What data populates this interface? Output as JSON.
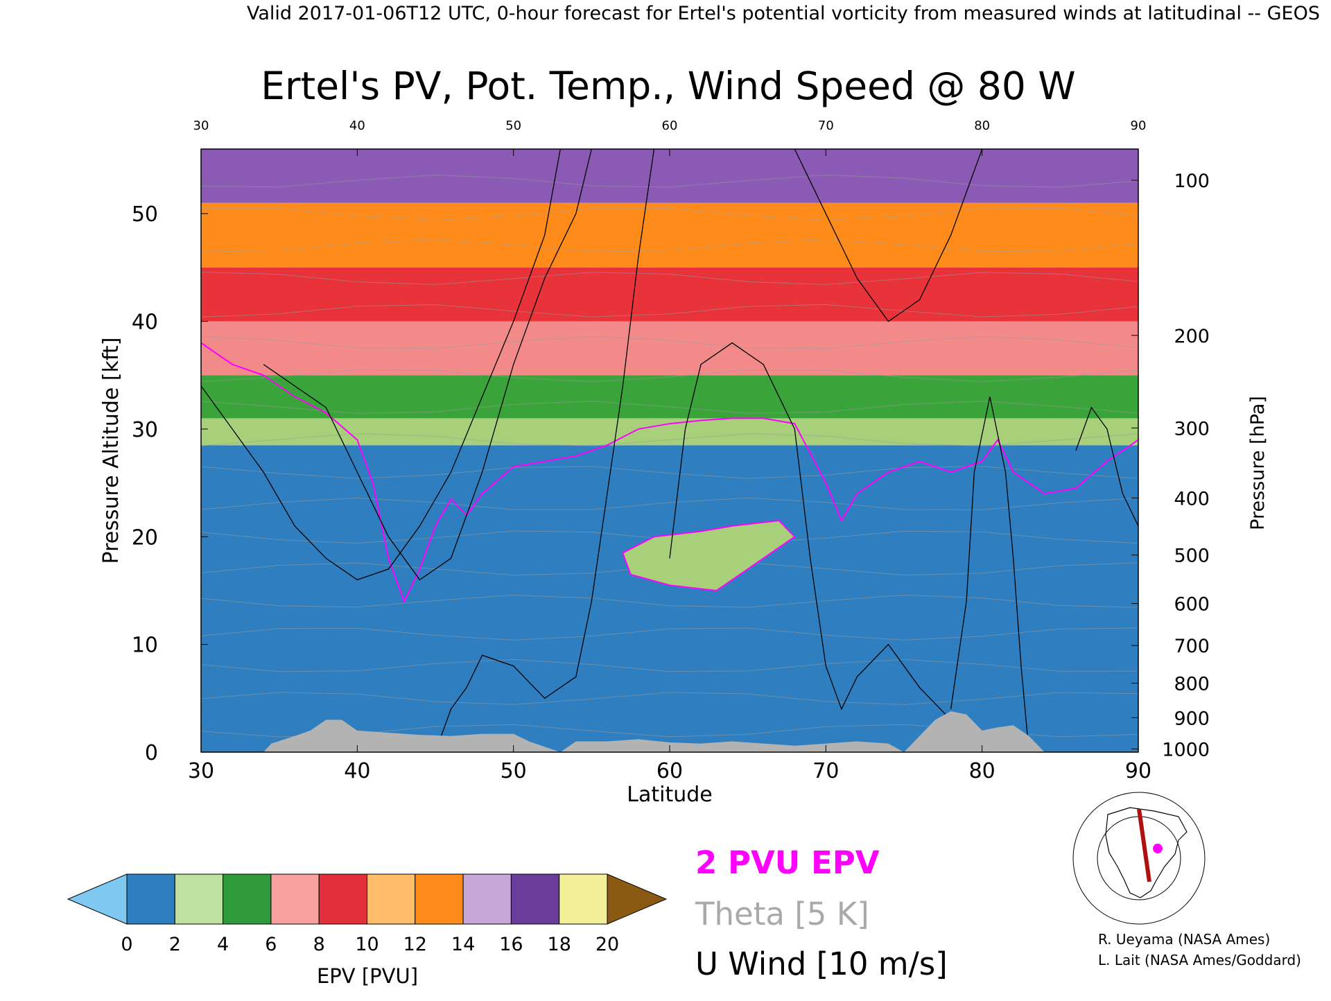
{
  "header_line": "Valid 2017-01-06T12 UTC, 0-hour forecast for Ertel's potential vorticity from measured winds at latitudinal -- GEOS",
  "chart_data": {
    "type": "heatmap",
    "title": "Ertel's PV, Pot. Temp., Wind Speed @ 80 W",
    "xlabel": "Latitude",
    "ylabel_left": "Pressure Altitude [kft]",
    "ylabel_right": "Pressure [hPa]",
    "xlim": [
      30,
      90
    ],
    "ylim_kft": [
      0,
      56
    ],
    "x_ticks": [
      30,
      40,
      50,
      60,
      70,
      80,
      90
    ],
    "y_ticks_kft": [
      0,
      10,
      20,
      30,
      40,
      50
    ],
    "pressure_ticks": [
      {
        "hpa": 100,
        "kft": 53.1
      },
      {
        "hpa": 200,
        "kft": 38.7
      },
      {
        "hpa": 300,
        "kft": 30.1
      },
      {
        "hpa": 400,
        "kft": 23.6
      },
      {
        "hpa": 500,
        "kft": 18.3
      },
      {
        "hpa": 600,
        "kft": 13.8
      },
      {
        "hpa": 700,
        "kft": 9.9
      },
      {
        "hpa": 800,
        "kft": 6.4
      },
      {
        "hpa": 900,
        "kft": 3.2
      },
      {
        "hpa": 1000,
        "kft": 0.3
      }
    ],
    "grid": false,
    "tropopause_2pvu_kft": [
      [
        30,
        38
      ],
      [
        32,
        36
      ],
      [
        34,
        35
      ],
      [
        36,
        33
      ],
      [
        38,
        31.5
      ],
      [
        40,
        29
      ],
      [
        41,
        25
      ],
      [
        42,
        18
      ],
      [
        43,
        14
      ],
      [
        44,
        17
      ],
      [
        45,
        21
      ],
      [
        46,
        23.5
      ],
      [
        47,
        22
      ],
      [
        48,
        24
      ],
      [
        50,
        26.5
      ],
      [
        52,
        27
      ],
      [
        54,
        27.5
      ],
      [
        56,
        28.5
      ],
      [
        58,
        30
      ],
      [
        60,
        30.5
      ],
      [
        62,
        30.8
      ],
      [
        64,
        31
      ],
      [
        66,
        31
      ],
      [
        68,
        30.5
      ],
      [
        70,
        25
      ],
      [
        71,
        21.5
      ],
      [
        72,
        24
      ],
      [
        74,
        26
      ],
      [
        76,
        27
      ],
      [
        78,
        26
      ],
      [
        80,
        27
      ],
      [
        81,
        29
      ],
      [
        82,
        26
      ],
      [
        84,
        24
      ],
      [
        86,
        24.5
      ],
      [
        88,
        27
      ],
      [
        90,
        29
      ]
    ],
    "pv_blob_kft": [
      [
        57,
        18.5
      ],
      [
        59,
        20
      ],
      [
        62,
        20.5
      ],
      [
        64,
        21
      ],
      [
        67,
        21.5
      ],
      [
        68,
        20
      ],
      [
        65,
        17
      ],
      [
        63,
        15
      ],
      [
        60,
        15.5
      ],
      [
        57.5,
        16.5
      ]
    ],
    "terrain_kft": [
      [
        30,
        0
      ],
      [
        34,
        0
      ],
      [
        34.5,
        0.8
      ],
      [
        36,
        1.5
      ],
      [
        37,
        2
      ],
      [
        38,
        3
      ],
      [
        39,
        3
      ],
      [
        40,
        2
      ],
      [
        42,
        1.8
      ],
      [
        44,
        1.6
      ],
      [
        46,
        1.5
      ],
      [
        48,
        1.7
      ],
      [
        50,
        1.7
      ],
      [
        51,
        1
      ],
      [
        52,
        0.5
      ],
      [
        53,
        0
      ],
      [
        54,
        1
      ],
      [
        56,
        1
      ],
      [
        58,
        1.2
      ],
      [
        60,
        0.9
      ],
      [
        62,
        0.8
      ],
      [
        64,
        1
      ],
      [
        66,
        0.8
      ],
      [
        68,
        0.6
      ],
      [
        70,
        0.8
      ],
      [
        72,
        1
      ],
      [
        74,
        0.8
      ],
      [
        75,
        0
      ],
      [
        76,
        1.5
      ],
      [
        77,
        3
      ],
      [
        78,
        3.8
      ],
      [
        79,
        3.5
      ],
      [
        80,
        2
      ],
      [
        81,
        2.3
      ],
      [
        82,
        2.5
      ],
      [
        83,
        1.5
      ],
      [
        84,
        0
      ],
      [
        90,
        0
      ]
    ],
    "epv_bands": [
      {
        "top_kft": 28.5,
        "color": "#2f7fc0"
      },
      {
        "top_kft": 31,
        "color": "#a8d07a"
      },
      {
        "top_kft": 35,
        "color": "#3aa43a"
      },
      {
        "top_kft": 40,
        "color": "#f28a8a"
      },
      {
        "top_kft": 45,
        "color": "#e8333b"
      },
      {
        "top_kft": 51,
        "color": "#ff8c1a"
      },
      {
        "top_kft": 56,
        "color": "#8a5ab4"
      }
    ],
    "wind_contours_kft": [
      [
        [
          30,
          34
        ],
        [
          32,
          30
        ],
        [
          34,
          26
        ],
        [
          36,
          21
        ],
        [
          38,
          18
        ],
        [
          40,
          16
        ],
        [
          42,
          17
        ],
        [
          44,
          21
        ],
        [
          46,
          26
        ],
        [
          48,
          33
        ],
        [
          50,
          40
        ],
        [
          52,
          48
        ],
        [
          53,
          56
        ]
      ],
      [
        [
          34,
          36
        ],
        [
          38,
          32
        ],
        [
          40,
          26
        ],
        [
          42,
          20
        ],
        [
          44,
          16
        ],
        [
          46,
          18
        ],
        [
          48,
          26
        ],
        [
          50,
          36
        ],
        [
          52,
          44
        ],
        [
          54,
          50
        ],
        [
          55,
          56
        ]
      ],
      [
        [
          45,
          0
        ],
        [
          46,
          4
        ],
        [
          47,
          6
        ],
        [
          48,
          9
        ],
        [
          50,
          8
        ],
        [
          52,
          5
        ],
        [
          54,
          7
        ],
        [
          55,
          14
        ],
        [
          56,
          24
        ],
        [
          57,
          34
        ],
        [
          58,
          46
        ],
        [
          59,
          56
        ]
      ],
      [
        [
          60,
          18
        ],
        [
          61,
          30
        ],
        [
          62,
          36
        ],
        [
          64,
          38
        ],
        [
          66,
          36
        ],
        [
          68,
          30
        ],
        [
          69,
          18
        ],
        [
          70,
          8
        ],
        [
          71,
          4
        ],
        [
          72,
          7
        ],
        [
          74,
          10
        ],
        [
          76,
          6
        ],
        [
          78,
          3
        ]
      ],
      [
        [
          68,
          56
        ],
        [
          70,
          50
        ],
        [
          72,
          44
        ],
        [
          74,
          40
        ],
        [
          76,
          42
        ],
        [
          78,
          48
        ],
        [
          80,
          56
        ]
      ],
      [
        [
          78,
          4
        ],
        [
          79,
          14
        ],
        [
          79.5,
          26
        ],
        [
          80.5,
          33
        ],
        [
          81.5,
          26
        ],
        [
          82,
          18
        ],
        [
          82.5,
          8
        ],
        [
          83,
          0
        ]
      ],
      [
        [
          86,
          28
        ],
        [
          87,
          32
        ],
        [
          88,
          30
        ],
        [
          89,
          24
        ],
        [
          90,
          21
        ]
      ]
    ],
    "colorbar": {
      "label": "EPV [PVU]",
      "ticks": [
        0,
        2,
        4,
        6,
        8,
        10,
        12,
        14,
        16,
        18,
        20
      ],
      "colors": [
        "#7ec8f2",
        "#2f7fc0",
        "#bfe1a0",
        "#2e9a3a",
        "#f7a0a0",
        "#e32f3a",
        "#ffbd6b",
        "#ff8c1a",
        "#c6a7d8",
        "#6b3d9a",
        "#f2ef9a",
        "#8b5a12"
      ],
      "over_color": "#8b5a12",
      "under_color": "#7ec8f2"
    },
    "legend": {
      "position": "bottom-center",
      "items": [
        {
          "label": "2 PVU EPV",
          "color": "#ff00ff"
        },
        {
          "label": "Theta [5 K]",
          "color": "#a9a9a9"
        },
        {
          "label": "U Wind [10 m/s]",
          "color": "#000000"
        }
      ]
    }
  },
  "credits": {
    "line1": "R. Ueyama (NASA Ames)",
    "line2": "L. Lait (NASA Ames/Goddard)"
  },
  "map_inset": {
    "cross_section_color": "#b01010",
    "marker_color": "#ff00ff"
  }
}
